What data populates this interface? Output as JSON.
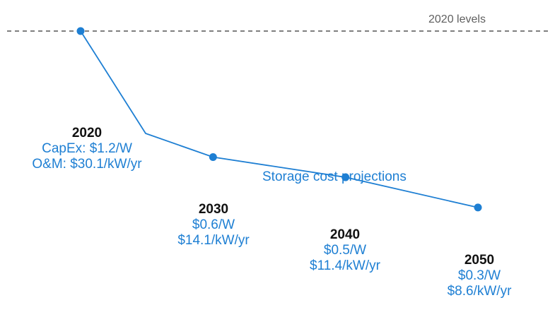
{
  "chart_data": {
    "type": "line",
    "title": "",
    "series_label": "Storage cost projections",
    "reference_line": {
      "label": "2020 levels"
    },
    "colors": {
      "line": "#1e7fd3",
      "reference": "#555555",
      "year_text": "#111111"
    },
    "points": [
      {
        "year": "2020",
        "line1": "CapEx: $1.2/W",
        "line2": "O&M: $30.1/kW/yr",
        "relative": 1.0
      },
      {
        "year": "2030",
        "line1": "$0.6/W",
        "line2": "$14.1/kW/yr",
        "relative": 0.5
      },
      {
        "year": "2040",
        "line1": "$0.5/W",
        "line2": "$11.4/kW/yr",
        "relative": 0.42
      },
      {
        "year": "2050",
        "line1": "$0.3/W",
        "line2": "$8.6/kW/yr",
        "relative": 0.3
      }
    ]
  }
}
